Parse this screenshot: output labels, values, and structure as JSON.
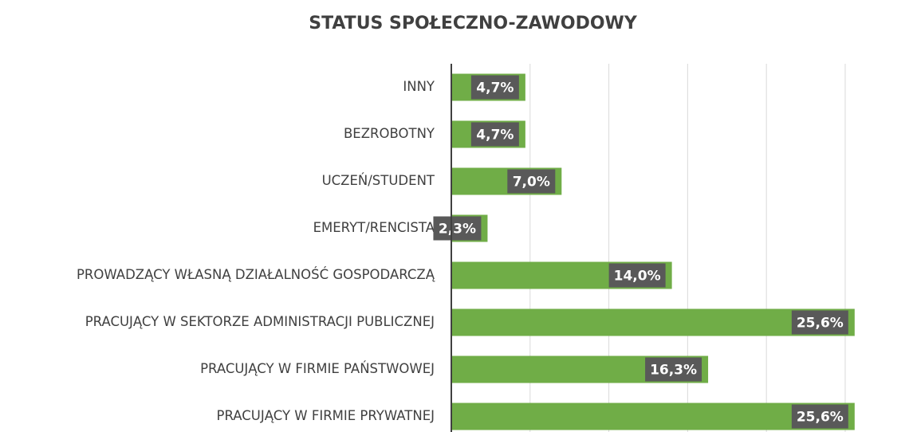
{
  "chart_data": {
    "type": "bar",
    "orientation": "horizontal",
    "title": "STATUS SPOŁECZNO-ZAWODOWY",
    "categories": [
      "INNY",
      "BEZROBOTNY",
      "UCZEŃ/STUDENT",
      "EMERYT/RENCISTA",
      "PROWADZĄCY WŁASNĄ DZIAŁALNOŚĆ GOSPODARCZĄ",
      "PRACUJĄCY W SEKTORZE ADMINISTRACJI PUBLICZNEJ",
      "PRACUJĄCY W FIRMIE PAŃSTWOWEJ",
      "PRACUJĄCY W FIRMIE PRYWATNEJ"
    ],
    "values": [
      4.7,
      4.7,
      7.0,
      2.3,
      14.0,
      25.6,
      16.3,
      25.6
    ],
    "value_labels": [
      "4,7%",
      "4,7%",
      "7,0%",
      "2,3%",
      "14,0%",
      "25,6%",
      "16,3%",
      "25,6%"
    ],
    "color": "#70ad47",
    "xlim": [
      0,
      29
    ],
    "xticks": [
      0,
      5,
      10,
      15,
      20,
      25
    ],
    "grid": true
  }
}
